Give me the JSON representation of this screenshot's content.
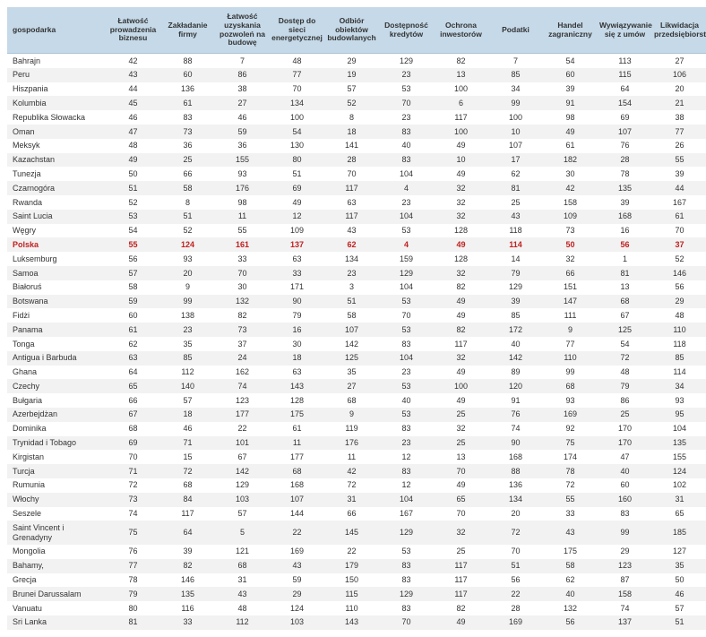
{
  "colors": {
    "header_bg": "#c5d9e8",
    "row_alt_bg": "#f2f2f2",
    "text": "#333333",
    "highlight_text": "#c02020",
    "background": "#ffffff"
  },
  "typography": {
    "header_fontsize_pt": 8.5,
    "body_fontsize_pt": 9,
    "header_fontweight": "bold",
    "font_family": "Arial, Helvetica, sans-serif"
  },
  "highlight_row": "Polska",
  "columns": [
    "gospodarka",
    "Łatwość prowadzenia biznesu",
    "Zakładanie firmy",
    "Łatwość uzyskania pozwoleń na budowę",
    "Dostęp do sieci energetycznej",
    "Odbiór obiektów budowlanych",
    "Dostępność kredytów",
    "Ochrona inwestorów",
    "Podatki",
    "Handel zagraniczny",
    "Wywiązywanie się z umów",
    "Likwidacja przedsiębiorstwa"
  ],
  "rows": [
    [
      "Bahrajn",
      42,
      88,
      7,
      48,
      29,
      129,
      82,
      7,
      54,
      113,
      27
    ],
    [
      "Peru",
      43,
      60,
      86,
      77,
      19,
      23,
      13,
      85,
      60,
      115,
      106
    ],
    [
      "Hiszpania",
      44,
      136,
      38,
      70,
      57,
      53,
      100,
      34,
      39,
      64,
      20
    ],
    [
      "Kolumbia",
      45,
      61,
      27,
      134,
      52,
      70,
      6,
      99,
      91,
      154,
      21
    ],
    [
      "Republika Słowacka",
      46,
      83,
      46,
      100,
      8,
      23,
      117,
      100,
      98,
      69,
      38
    ],
    [
      "Oman",
      47,
      73,
      59,
      54,
      18,
      83,
      100,
      10,
      49,
      107,
      77
    ],
    [
      "Meksyk",
      48,
      36,
      36,
      130,
      141,
      40,
      49,
      107,
      61,
      76,
      26
    ],
    [
      "Kazachstan",
      49,
      25,
      155,
      80,
      28,
      83,
      10,
      17,
      182,
      28,
      55
    ],
    [
      "Tunezja",
      50,
      66,
      93,
      51,
      70,
      104,
      49,
      62,
      30,
      78,
      39
    ],
    [
      "Czarnogóra",
      51,
      58,
      176,
      69,
      117,
      4,
      32,
      81,
      42,
      135,
      44
    ],
    [
      "Rwanda",
      52,
      8,
      98,
      49,
      63,
      23,
      32,
      25,
      158,
      39,
      167
    ],
    [
      "Saint Lucia",
      53,
      51,
      11,
      12,
      117,
      104,
      32,
      43,
      109,
      168,
      61
    ],
    [
      "Węgry",
      54,
      52,
      55,
      109,
      43,
      53,
      128,
      118,
      73,
      16,
      70
    ],
    [
      "Polska",
      55,
      124,
      161,
      137,
      62,
      4,
      49,
      114,
      50,
      56,
      37
    ],
    [
      "Luksemburg",
      56,
      93,
      33,
      63,
      134,
      159,
      128,
      14,
      32,
      1,
      52
    ],
    [
      "Samoa",
      57,
      20,
      70,
      33,
      23,
      129,
      32,
      79,
      66,
      81,
      146
    ],
    [
      "Białoruś",
      58,
      9,
      30,
      171,
      3,
      104,
      82,
      129,
      151,
      13,
      56
    ],
    [
      "Botswana",
      59,
      99,
      132,
      90,
      51,
      53,
      49,
      39,
      147,
      68,
      29
    ],
    [
      "Fidżi",
      60,
      138,
      82,
      79,
      58,
      70,
      49,
      85,
      111,
      67,
      48
    ],
    [
      "Panama",
      61,
      23,
      73,
      16,
      107,
      53,
      82,
      172,
      9,
      125,
      110
    ],
    [
      "Tonga",
      62,
      35,
      37,
      30,
      142,
      83,
      117,
      40,
      77,
      54,
      118
    ],
    [
      "Antigua i Barbuda",
      63,
      85,
      24,
      18,
      125,
      104,
      32,
      142,
      110,
      72,
      85
    ],
    [
      "Ghana",
      64,
      112,
      162,
      63,
      35,
      23,
      49,
      89,
      99,
      48,
      114
    ],
    [
      "Czechy",
      65,
      140,
      74,
      143,
      27,
      53,
      100,
      120,
      68,
      79,
      34
    ],
    [
      "Bułgaria",
      66,
      57,
      123,
      128,
      68,
      40,
      49,
      91,
      93,
      86,
      93
    ],
    [
      "Azerbejdżan",
      67,
      18,
      177,
      175,
      9,
      53,
      25,
      76,
      169,
      25,
      95
    ],
    [
      "Dominika",
      68,
      46,
      22,
      61,
      119,
      83,
      32,
      74,
      92,
      170,
      104
    ],
    [
      "Trynidad i Tobago",
      69,
      71,
      101,
      11,
      176,
      23,
      25,
      90,
      75,
      170,
      135
    ],
    [
      "Kirgistan",
      70,
      15,
      67,
      177,
      11,
      12,
      13,
      168,
      174,
      47,
      155
    ],
    [
      "Turcja",
      71,
      72,
      142,
      68,
      42,
      83,
      70,
      88,
      78,
      40,
      124
    ],
    [
      "Rumunia",
      72,
      68,
      129,
      168,
      72,
      12,
      49,
      136,
      72,
      60,
      102
    ],
    [
      "Włochy",
      73,
      84,
      103,
      107,
      31,
      104,
      65,
      134,
      55,
      160,
      31
    ],
    [
      "Seszele",
      74,
      117,
      57,
      144,
      66,
      167,
      70,
      20,
      33,
      83,
      65
    ],
    [
      "Saint Vincent i Grenadyny",
      75,
      64,
      5,
      22,
      145,
      129,
      32,
      72,
      43,
      99,
      185
    ],
    [
      "Mongolia",
      76,
      39,
      121,
      169,
      22,
      53,
      25,
      70,
      175,
      29,
      127
    ],
    [
      "Bahamy,",
      77,
      82,
      68,
      43,
      179,
      83,
      117,
      51,
      58,
      123,
      35
    ],
    [
      "Grecja",
      78,
      146,
      31,
      59,
      150,
      83,
      117,
      56,
      62,
      87,
      50
    ],
    [
      "Brunei Darussalam",
      79,
      135,
      43,
      29,
      115,
      129,
      117,
      22,
      40,
      158,
      46
    ],
    [
      "Vanuatu",
      80,
      116,
      48,
      124,
      110,
      83,
      82,
      28,
      132,
      74,
      57
    ],
    [
      "Sri Lanka",
      81,
      33,
      112,
      103,
      143,
      70,
      49,
      169,
      56,
      137,
      51
    ]
  ]
}
